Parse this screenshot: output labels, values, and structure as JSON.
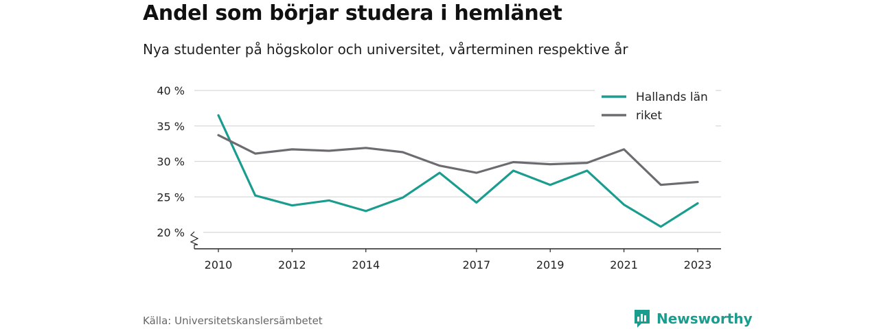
{
  "header": {
    "title": "Andel som börjar studera i hemlänet",
    "subtitle": "Nya studenter på högskolor och universitet, vårterminen respektive år"
  },
  "footer": {
    "source": "Källa: Universitetskanslersämbetet",
    "brand": "Newsworthy",
    "brand_icon": "bar-chart-logo-icon"
  },
  "colors": {
    "hallands": "#1a9c8e",
    "riket": "#6d6b70",
    "grid": "#d8d8d8",
    "axis": "#222222"
  },
  "chart_data": {
    "type": "line",
    "title": "Andel som börjar studera i hemlänet",
    "subtitle": "Nya studenter på högskolor och universitet, vårterminen respektive år",
    "xlabel": "",
    "ylabel": "",
    "x": [
      2010,
      2011,
      2012,
      2013,
      2014,
      2015,
      2016,
      2017,
      2018,
      2019,
      2020,
      2021,
      2022,
      2023
    ],
    "x_tick_values": [
      2010,
      2012,
      2014,
      2017,
      2019,
      2021,
      2023
    ],
    "x_tick_labels": [
      "2010",
      "2012",
      "2014",
      "2017",
      "2019",
      "2021",
      "2023"
    ],
    "y_tick_values": [
      20,
      25,
      30,
      35,
      40
    ],
    "y_tick_labels": [
      "20 %",
      "25 %",
      "30 %",
      "35 %",
      "40 %"
    ],
    "ylim": [
      18,
      40
    ],
    "y_axis_break": true,
    "grid": true,
    "legend_position": "top-right",
    "series": [
      {
        "name": "Hallands län",
        "color": "#1a9c8e",
        "values": [
          36.5,
          25.2,
          23.8,
          24.5,
          23.0,
          24.9,
          28.4,
          24.2,
          28.7,
          26.7,
          28.7,
          23.9,
          20.8,
          24.1
        ]
      },
      {
        "name": "riket",
        "color": "#6d6b70",
        "values": [
          33.7,
          31.1,
          31.7,
          31.5,
          31.9,
          31.3,
          29.4,
          28.4,
          29.9,
          29.6,
          29.8,
          31.7,
          26.7,
          27.1
        ]
      }
    ]
  }
}
